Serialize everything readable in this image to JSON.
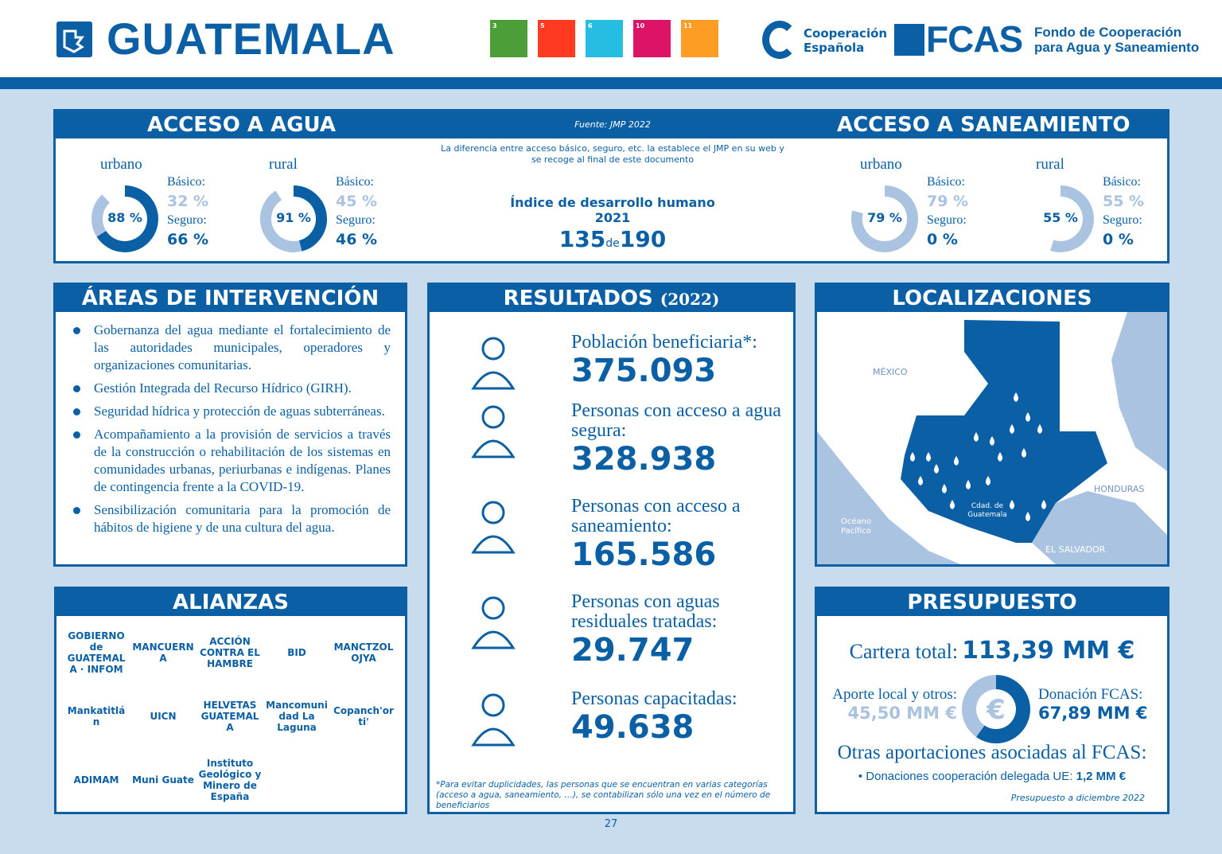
{
  "header": {
    "title": "GUATEMALA",
    "sdgs": [
      {
        "num": "3",
        "color": "#4c9f38"
      },
      {
        "num": "5",
        "color": "#ff3a21"
      },
      {
        "num": "6",
        "color": "#26bde2"
      },
      {
        "num": "10",
        "color": "#dd1367"
      },
      {
        "num": "11",
        "color": "#fd9d24"
      }
    ],
    "cooperacion": [
      "Cooperación",
      "Española"
    ],
    "fcas_logo": "FCAS",
    "fcas_name": [
      "Fondo de Cooperación",
      "para Agua y Saneamiento"
    ]
  },
  "colors": {
    "primary": "#0b5fa5",
    "light": "#a9c3e0",
    "background": "#c9dcee"
  },
  "access": {
    "water_title": "ACCESO A AGUA",
    "source": "Fuente: JMP 2022",
    "sanitation_title": "ACCESO A SANEAMIENTO",
    "note": "La diferencia entre acceso básico, seguro, etc. la establece el JMP en su web y se recoge al final de este documento",
    "idh_title": "Índice de desarrollo humano 2021",
    "idh_rank": "135",
    "idh_de": "de",
    "idh_total": "190",
    "basic_label": "Básico:",
    "safe_label": "Seguro:",
    "water": [
      {
        "area": "urbano",
        "total": "88 %",
        "basic": "32 %",
        "safe": "66 %",
        "total_v": 88,
        "safe_v": 66
      },
      {
        "area": "rural",
        "total": "91 %",
        "basic": "45 %",
        "safe": "46 %",
        "total_v": 91,
        "safe_v": 46
      }
    ],
    "sanitation": [
      {
        "area": "urbano",
        "total": "79 %",
        "basic": "79 %",
        "safe": "0 %",
        "total_v": 79,
        "safe_v": 0
      },
      {
        "area": "rural",
        "total": "55 %",
        "basic": "55 %",
        "safe": "0 %",
        "total_v": 55,
        "safe_v": 0
      }
    ]
  },
  "areas": {
    "title": "ÁREAS DE INTERVENCIÓN",
    "items": [
      "Gobernanza del agua mediante el fortalecimiento de las autoridades municipales, operadores y organizaciones comunitarias.",
      "Gestión Integrada del Recurso Hídrico (GIRH).",
      "Seguridad hídrica y protección de aguas subterráneas.",
      "Acompañamiento a la provisión de servicios a través de la construcción o rehabilitación de los sistemas en comunidades urbanas, periurbanas e indígenas. Planes de contingencia frente a la COVID-19.",
      "Sensibilización comunitaria para la promoción de hábitos de higiene y de una cultura del agua."
    ]
  },
  "results": {
    "title": "RESULTADOS",
    "year": "(2022)",
    "items": [
      {
        "label": "Población beneficiaria*:",
        "value": "375.093",
        "icon": "people-icon"
      },
      {
        "label": "Personas con acceso a agua segura:",
        "value": "328.938",
        "icon": "tap-icon"
      },
      {
        "label": "Personas con acceso a saneamiento:",
        "value": "165.586",
        "icon": "pipe-icon"
      },
      {
        "label": "Personas con aguas residuales tratadas:",
        "value": "29.747",
        "icon": "water-drop-recycle-icon"
      },
      {
        "label": "Personas capacitadas:",
        "value": "49.638",
        "icon": "trained-people-icon"
      }
    ],
    "footnote": "*Para evitar duplicidades, las personas que se encuentran en varias categorías (acceso a agua, saneamiento, …), se contabilizan sólo una vez en el número de beneficiarios"
  },
  "map": {
    "title": "LOCALIZACIONES",
    "labels": {
      "mexico": "MÉXICO",
      "honduras": "HONDURAS",
      "salvador": "EL SALVADOR",
      "ocean": "Océano Pacífico",
      "capital": "Cdad. de Guatemala"
    }
  },
  "alliances": {
    "title": "ALIANZAS",
    "logos": [
      "GOBIERNO de GUATEMALA · INFOM",
      "MANCUERNA",
      "ACCIÓN CONTRA EL HAMBRE",
      "BID",
      "MANCTZOLOJYA",
      "Mankatitlán",
      "UICN",
      "HELVETAS GUATEMALA",
      "Mancomunidad La Laguna",
      "Copanch'orti'",
      "ADIMAM",
      "Muni Guate",
      "Instituto Geológico y Minero de España"
    ]
  },
  "budget": {
    "title": "PRESUPUESTO",
    "total_label": "Cartera total:",
    "total": "113,39 MM €",
    "local_label": "Aporte local y otros:",
    "local": "45,50 MM €",
    "fcas_label": "Donación FCAS:",
    "fcas": "67,89 MM €",
    "local_v": 45.5,
    "fcas_v": 67.89,
    "others_title": "Otras aportaciones asociadas al FCAS:",
    "others_item": "• Donaciones cooperación delegada UE:",
    "others_value": "1,2 MM €",
    "note": "Presupuesto a diciembre 2022"
  },
  "page_number": "27"
}
